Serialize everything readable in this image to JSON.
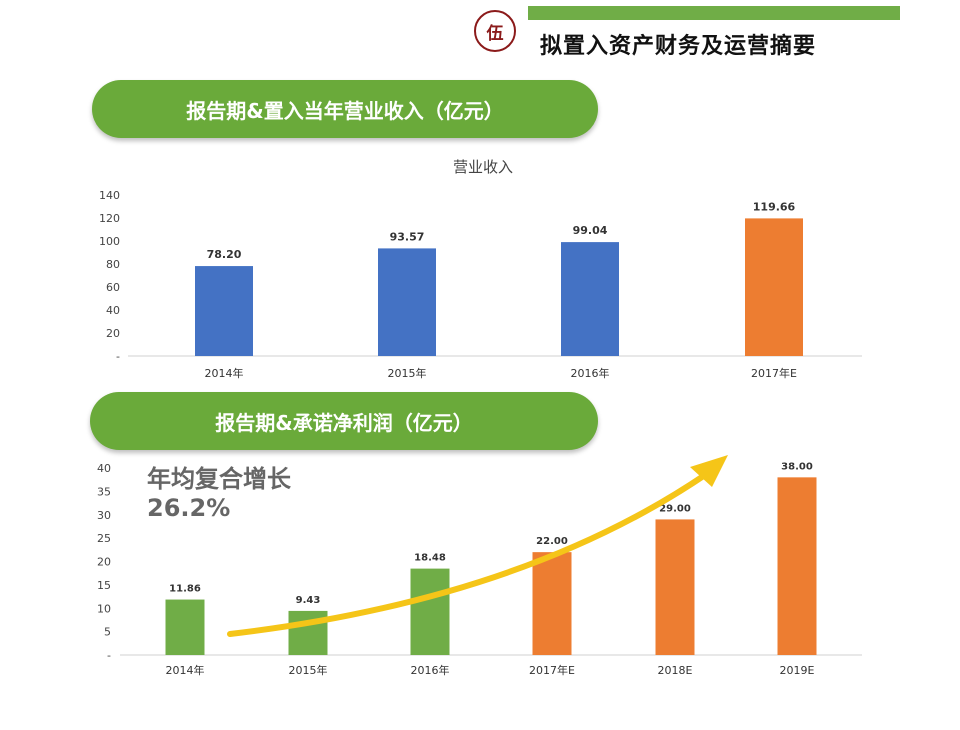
{
  "header": {
    "badge": "伍",
    "title": "拟置入资产财务及运营摘要",
    "accent_color": "#70ad47",
    "badge_color": "#8b1a1a"
  },
  "sections": {
    "revenue_title": "报告期&置入当年营业收入（亿元）",
    "profit_title": "报告期&承诺净利润（亿元）"
  },
  "cagr": {
    "label": "年均复合增长",
    "value": "26.2%"
  },
  "colors": {
    "blue": "#4472c4",
    "orange": "#ed7d31",
    "green": "#70ad47",
    "arrow": "#f5c518"
  },
  "chart_data": [
    {
      "type": "bar",
      "title": "营业收入",
      "categories": [
        "2014年",
        "2015年",
        "2016年",
        "2017年E"
      ],
      "values": [
        78.2,
        93.57,
        99.04,
        119.66
      ],
      "value_labels": [
        "78.20",
        "93.57",
        "99.04",
        "119.66"
      ],
      "bar_colors": [
        "blue",
        "blue",
        "blue",
        "orange"
      ],
      "yticks": [
        "-",
        "20",
        "40",
        "60",
        "80",
        "100",
        "120",
        "140"
      ],
      "ylim": [
        0,
        140
      ],
      "grid": false
    },
    {
      "type": "bar",
      "title": "",
      "categories": [
        "2014年",
        "2015年",
        "2016年",
        "2017年E",
        "2018E",
        "2019E"
      ],
      "values": [
        11.86,
        9.43,
        18.48,
        22.0,
        29.0,
        38.0
      ],
      "value_labels": [
        "11.86",
        "9.43",
        "18.48",
        "22.00",
        "29.00",
        "38.00"
      ],
      "bar_colors": [
        "green",
        "green",
        "green",
        "orange",
        "orange",
        "orange"
      ],
      "yticks": [
        "-",
        "5",
        "10",
        "15",
        "20",
        "25",
        "30",
        "35",
        "40"
      ],
      "ylim": [
        0,
        40
      ],
      "grid": false,
      "annotation": "growth-arrow"
    }
  ]
}
